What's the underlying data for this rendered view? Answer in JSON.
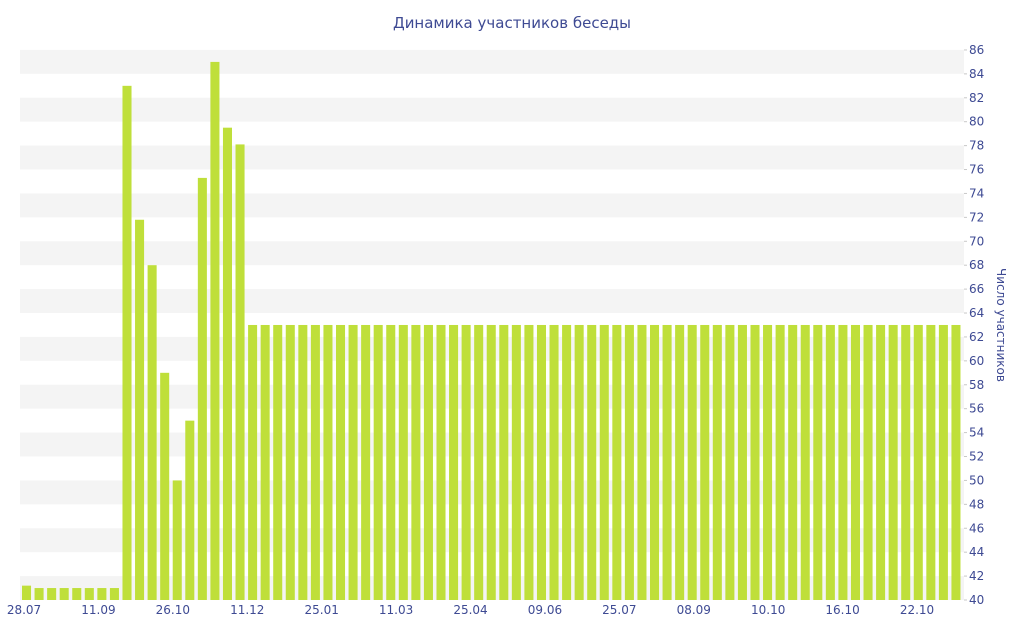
{
  "chart_data": {
    "type": "bar",
    "title": "Динамика участников беседы",
    "xlabel": "",
    "ylabel": "Число участников",
    "ylim": [
      40,
      87
    ],
    "y_ticks": [
      40,
      42,
      44,
      46,
      48,
      50,
      52,
      54,
      56,
      58,
      60,
      62,
      64,
      66,
      68,
      70,
      72,
      74,
      76,
      78,
      80,
      82,
      84,
      86
    ],
    "y_axis_side": "right",
    "grid": "alternating horizontal bands",
    "legend": "none",
    "bar_color": "#bfdf3a",
    "band_color": "#f4f4f4",
    "text_color": "#3e4a93",
    "x_tick_labels": [
      "28.07",
      "11.09",
      "26.10",
      "11.12",
      "25.01",
      "11.03",
      "25.04",
      "09.06",
      "25.07",
      "08.09",
      "10.10",
      "16.10",
      "22.10"
    ],
    "values": [
      41.2,
      41,
      41,
      41,
      41,
      41,
      41,
      41,
      83,
      71.8,
      68,
      59,
      50,
      55,
      75.3,
      85,
      79.5,
      78.1,
      63,
      63,
      63,
      63,
      63,
      63,
      63,
      63,
      63,
      63,
      63,
      63,
      63,
      63,
      63,
      63,
      63,
      63,
      63,
      63,
      63,
      63,
      63,
      63,
      63,
      63,
      63,
      63,
      63,
      63,
      63,
      63,
      63,
      63,
      63,
      63,
      63,
      63,
      63,
      63,
      63,
      63,
      63,
      63,
      63,
      63,
      63,
      63,
      63,
      63,
      63,
      63,
      63,
      63,
      63,
      63,
      63
    ]
  }
}
